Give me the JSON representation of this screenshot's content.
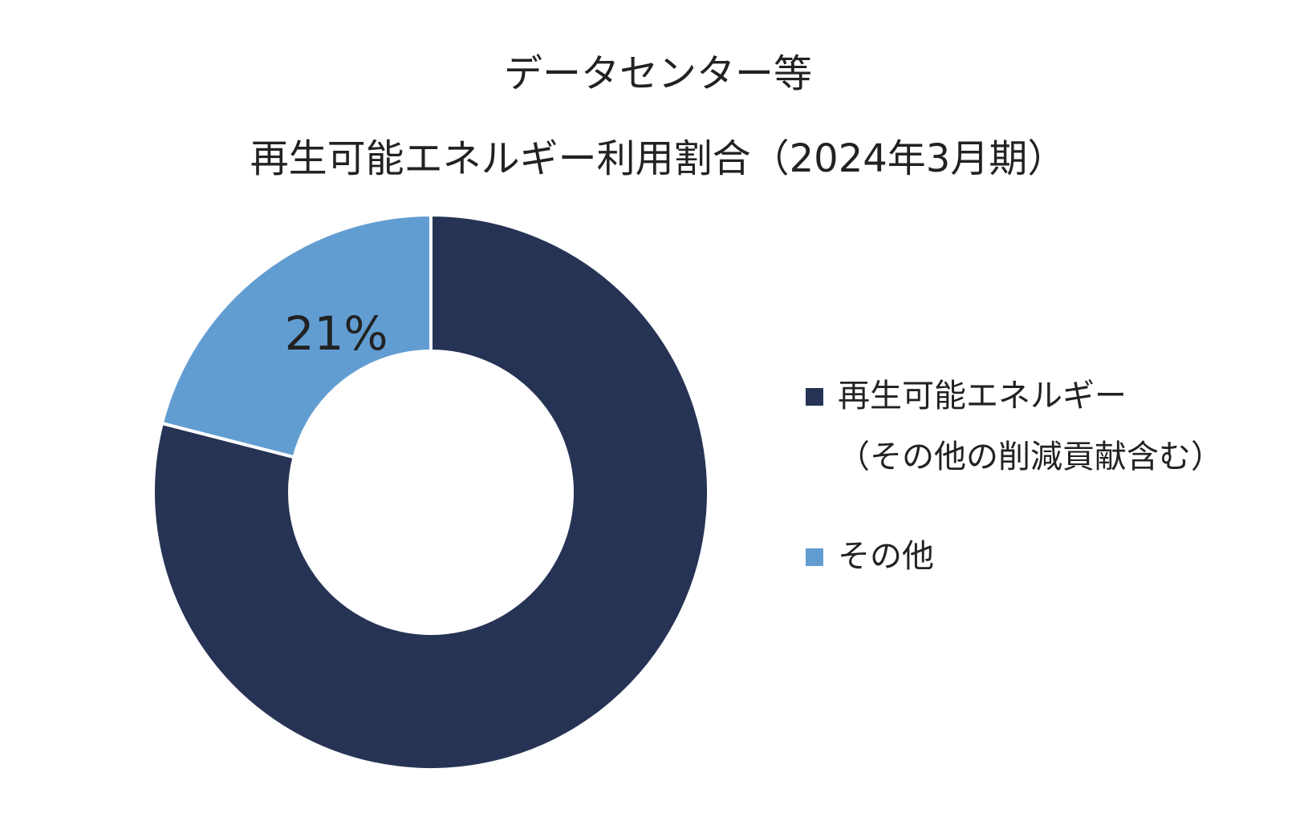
{
  "chart_data": {
    "type": "pie",
    "title": "データセンター等",
    "subtitle": "再生可能エネルギー利用割合（2024年3月期）",
    "series": [
      {
        "name": "再生可能エネルギー（その他の削減貢献含む）",
        "legend_line1": "再生可能エネルギー",
        "legend_line2": "（その他の削減貢献含む）",
        "value": 79,
        "label": "79%",
        "color": "#263355",
        "label_color": "#ffffff"
      },
      {
        "name": "その他",
        "legend_line1": "その他",
        "value": 21,
        "label": "21%",
        "color": "#629dd1",
        "label_color": "#222222"
      }
    ],
    "style": "donut",
    "legend_position": "right"
  }
}
